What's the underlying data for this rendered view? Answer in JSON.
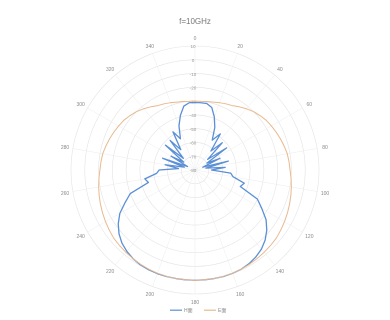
{
  "chart_data": {
    "type": "polar-line",
    "title": "f=10GHz",
    "angle_ticks": [
      "0",
      "20",
      "40",
      "60",
      "80",
      "100",
      "120",
      "140",
      "160",
      "180",
      "200",
      "220",
      "240",
      "260",
      "280",
      "300",
      "320",
      "340"
    ],
    "radial_ticks": [
      10,
      0,
      -10,
      -20,
      -30,
      -40,
      -50,
      -60,
      -70,
      -80
    ],
    "rlim": [
      -80,
      10
    ],
    "grid": true,
    "legend_position": "bottom",
    "series": [
      {
        "name": "H面",
        "color": "#5b8fd6",
        "angles": [
          0,
          5,
          10,
          15,
          20,
          25,
          30,
          35,
          40,
          45,
          50,
          55,
          60,
          65,
          70,
          75,
          80,
          85,
          90,
          95,
          100,
          105,
          110,
          115,
          120,
          125,
          130,
          135,
          140,
          145,
          150,
          155,
          160,
          165,
          170,
          175,
          180,
          185,
          190,
          195,
          200,
          205,
          210,
          215,
          220,
          225,
          230,
          235,
          240,
          245,
          250,
          255,
          260,
          265,
          270,
          275,
          280,
          285,
          290,
          295,
          300,
          305,
          310,
          315,
          320,
          325,
          330,
          335,
          340,
          345,
          350,
          355
        ],
        "values": [
          -31,
          -31,
          -31,
          -33,
          -39,
          -46,
          -55,
          -48,
          -62,
          -52,
          -68,
          -52,
          -70,
          -60,
          -74,
          -55,
          -72,
          -58,
          -68,
          -54,
          -52,
          -43,
          -45,
          -30,
          -24,
          -17,
          -12,
          -8,
          -5,
          -3,
          -1.5,
          -0.6,
          -0.2,
          0,
          0,
          0,
          0,
          0,
          0,
          0,
          0,
          -0.2,
          -0.6,
          -1.5,
          -3,
          -5,
          -8,
          -12,
          -17,
          -24,
          -30,
          -45,
          -43,
          -52,
          -54,
          -68,
          -58,
          -72,
          -55,
          -74,
          -60,
          -70,
          -52,
          -68,
          -52,
          -62,
          -48,
          -55,
          -46,
          -39,
          -33,
          -31
        ]
      },
      {
        "name": "E面",
        "color": "#e8b98e",
        "angles": [
          0,
          5,
          10,
          15,
          20,
          25,
          30,
          35,
          40,
          45,
          50,
          55,
          60,
          65,
          70,
          75,
          80,
          85,
          90,
          95,
          100,
          105,
          110,
          115,
          120,
          125,
          130,
          135,
          140,
          145,
          150,
          155,
          160,
          165,
          170,
          175,
          180,
          185,
          190,
          195,
          200,
          205,
          210,
          215,
          220,
          225,
          230,
          235,
          240,
          245,
          250,
          255,
          260,
          265,
          270,
          275,
          280,
          285,
          290,
          295,
          300,
          305,
          310,
          315,
          320,
          325,
          330,
          335,
          340,
          345,
          350,
          355
        ],
        "values": [
          -30,
          -30,
          -29.5,
          -29,
          -28,
          -27,
          -26,
          -24,
          -22,
          -20,
          -18.5,
          -17,
          -16,
          -15,
          -14,
          -13,
          -12,
          -11.5,
          -11,
          -10,
          -9,
          -8,
          -7,
          -6,
          -5,
          -4,
          -3,
          -2.5,
          -2,
          -1.5,
          -1,
          -0.6,
          -0.3,
          -0.1,
          0,
          0,
          0,
          0,
          0,
          -0.1,
          -0.3,
          -0.6,
          -1,
          -1.5,
          -2,
          -2.5,
          -3,
          -4,
          -5,
          -6,
          -7,
          -8,
          -9,
          -10,
          -11,
          -11.5,
          -12,
          -13,
          -14,
          -15,
          -16,
          -17,
          -18.5,
          -20,
          -22,
          -24,
          -26,
          -27,
          -28,
          -29,
          -29.5,
          -30
        ]
      }
    ]
  }
}
